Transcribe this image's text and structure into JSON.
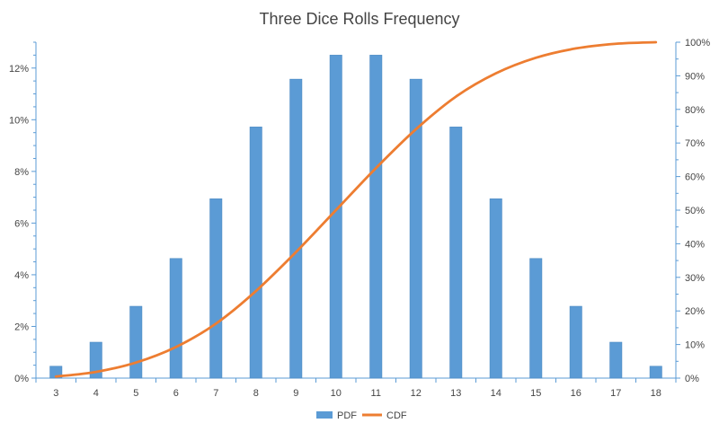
{
  "chart_data": {
    "type": "bar",
    "title": "Three Dice Rolls Frequency",
    "categories": [
      "3",
      "4",
      "5",
      "6",
      "7",
      "8",
      "9",
      "10",
      "11",
      "12",
      "13",
      "14",
      "15",
      "16",
      "17",
      "18"
    ],
    "series": [
      {
        "name": "PDF",
        "type": "bar",
        "axis": "left",
        "color": "#5b9bd5",
        "values": [
          0.46,
          1.39,
          2.78,
          4.63,
          6.94,
          9.72,
          11.57,
          12.5,
          12.5,
          11.57,
          9.72,
          6.94,
          4.63,
          2.78,
          1.39,
          0.46
        ]
      },
      {
        "name": "CDF",
        "type": "line",
        "axis": "right",
        "color": "#ed7d31",
        "smooth": true,
        "values": [
          0.46,
          1.85,
          4.63,
          9.26,
          16.2,
          25.93,
          37.5,
          50.0,
          62.5,
          74.07,
          83.8,
          90.74,
          95.37,
          98.15,
          99.54,
          100.0
        ]
      }
    ],
    "y_left": {
      "ylim": [
        0,
        13
      ],
      "ticks": [
        0,
        2,
        4,
        6,
        8,
        10,
        12
      ],
      "tick_labels": [
        "0%",
        "2%",
        "4%",
        "6%",
        "8%",
        "10%",
        "12%"
      ]
    },
    "y_right": {
      "ylim": [
        0,
        100
      ],
      "ticks": [
        0,
        10,
        20,
        30,
        40,
        50,
        60,
        70,
        80,
        90,
        100
      ],
      "tick_labels": [
        "0%",
        "10%",
        "20%",
        "30%",
        "40%",
        "50%",
        "60%",
        "70%",
        "80%",
        "90%",
        "100%"
      ]
    },
    "xlabel": "",
    "ylabel": "",
    "grid": false,
    "legend": "bottom"
  }
}
